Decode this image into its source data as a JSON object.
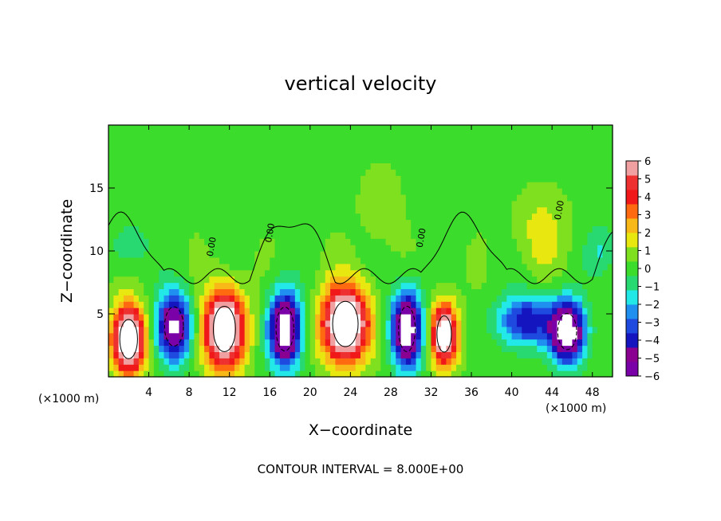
{
  "chart_data": {
    "type": "heatmap",
    "title": "vertical velocity",
    "xlabel": "X−coordinate",
    "ylabel": "Z−coordinate",
    "x_unit_left": "(×1000 m)",
    "x_unit_right": "(×1000 m)",
    "footer": "CONTOUR INTERVAL = 8.000E+00",
    "xlim": [
      0,
      50
    ],
    "ylim": [
      0,
      20
    ],
    "x_ticks": [
      4,
      8,
      12,
      16,
      20,
      24,
      28,
      32,
      36,
      40,
      44,
      48
    ],
    "x_tick_labels": [
      "4",
      "8",
      "12",
      "16",
      "20",
      "24",
      "28",
      "32",
      "36",
      "40",
      "44",
      "48"
    ],
    "y_ticks": [
      5,
      10,
      15
    ],
    "y_tick_labels": [
      "5",
      "10",
      "15"
    ],
    "colorbar": {
      "min": -6,
      "max": 6,
      "tick_values": [
        6,
        5,
        4,
        3,
        2,
        1,
        0,
        -1,
        -2,
        -3,
        -4,
        -5,
        -6
      ],
      "tick_labels": [
        "6",
        "5",
        "4",
        "3",
        "2",
        "1",
        "0",
        "−1",
        "−2",
        "−3",
        "−4",
        "−5",
        "−6"
      ],
      "colors": [
        "#7a00a8",
        "#8a0090",
        "#1515c0",
        "#1e4ae0",
        "#1f90f0",
        "#22e8e8",
        "#28d870",
        "#3cdc2c",
        "#7ee01e",
        "#e8e810",
        "#f8b818",
        "#ff6a10",
        "#f01818",
        "#ee3030",
        "#f0a0a0"
      ]
    },
    "contour_label": "0.00",
    "cells": [
      {
        "x": 2.0,
        "z": 3.0,
        "sx": 1.6,
        "sz": 2.6,
        "w": 9
      },
      {
        "x": 6.5,
        "z": 4.0,
        "sx": 1.7,
        "sz": 2.6,
        "w": -7
      },
      {
        "x": 11.5,
        "z": 3.8,
        "sx": 2.0,
        "sz": 3.0,
        "w": 9
      },
      {
        "x": 17.5,
        "z": 3.8,
        "sx": 1.6,
        "sz": 2.9,
        "w": -8
      },
      {
        "x": 23.5,
        "z": 4.2,
        "sx": 2.3,
        "sz": 3.0,
        "w": 9
      },
      {
        "x": 29.6,
        "z": 3.8,
        "sx": 1.5,
        "sz": 3.0,
        "w": -8
      },
      {
        "x": 33.3,
        "z": 3.4,
        "sx": 1.3,
        "sz": 2.4,
        "w": 8
      },
      {
        "x": 41.5,
        "z": 4.5,
        "sx": 2.8,
        "sz": 2.0,
        "w": -4.5
      },
      {
        "x": 45.5,
        "z": 3.6,
        "sx": 1.7,
        "sz": 2.4,
        "w": -8
      },
      {
        "x": 43.0,
        "z": 11.5,
        "sx": 2.5,
        "sz": 3.0,
        "w": 1.4
      },
      {
        "x": 27.0,
        "z": 13.5,
        "sx": 2.0,
        "sz": 3.0,
        "w": 0.8
      },
      {
        "x": 2.0,
        "z": 10.5,
        "sx": 2.0,
        "sz": 2.0,
        "w": -1.2
      },
      {
        "x": 49.0,
        "z": 10.0,
        "sx": 1.5,
        "sz": 2.0,
        "w": -1.5
      }
    ]
  }
}
